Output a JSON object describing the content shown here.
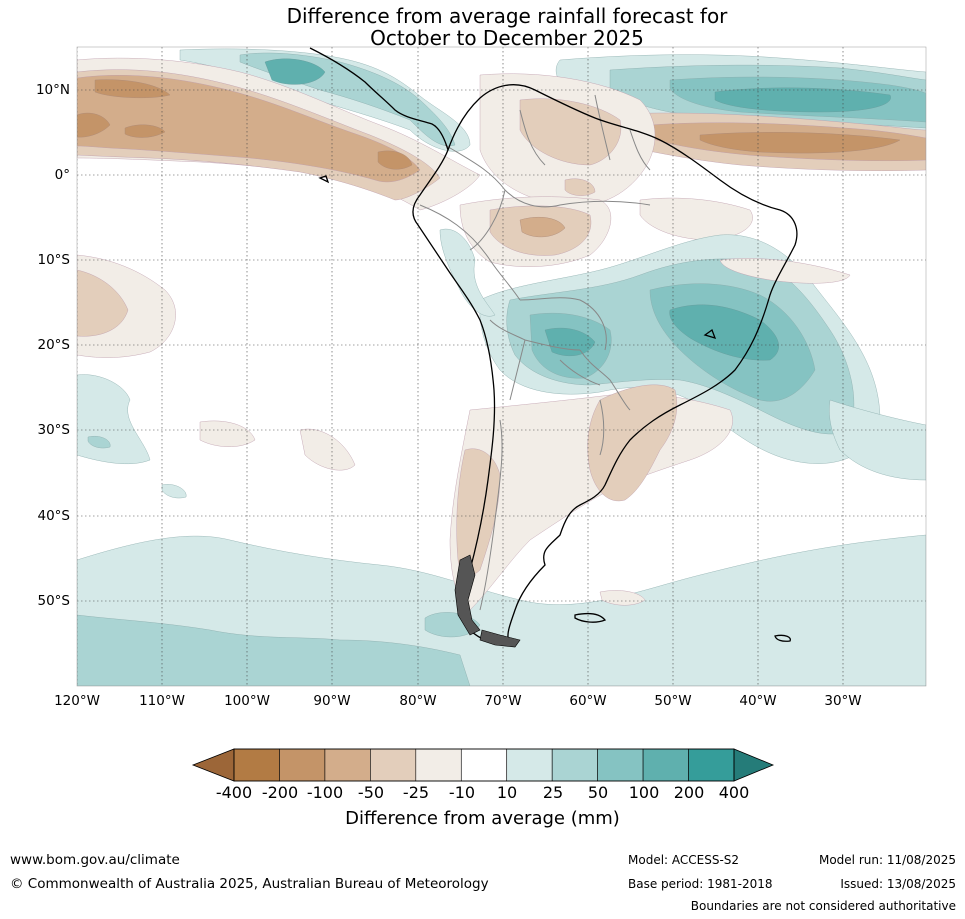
{
  "title": {
    "line1": "Difference from average rainfall forecast for",
    "line2": "October to December 2025"
  },
  "map": {
    "lat_labels": [
      "10°N",
      "0°",
      "10°S",
      "20°S",
      "30°S",
      "40°S",
      "50°S"
    ],
    "lon_labels": [
      "120°W",
      "110°W",
      "100°W",
      "90°W",
      "80°W",
      "70°W",
      "60°W",
      "50°W",
      "40°W",
      "30°W"
    ],
    "colors": {
      "dry_strong": "#b27b44",
      "dry_mid": "#c49468",
      "dry_light": "#d3ad8b",
      "dry_weak": "#e3cebb",
      "dry_faint": "#f2ede7",
      "neutral": "#ffffff",
      "wet_faint": "#d5e9e8",
      "wet_weak": "#aad4d3",
      "wet_light": "#85c3c2",
      "wet_mid": "#5fb0ae",
      "wet_strong": "#359d9a",
      "wet_extreme": "#257c79"
    }
  },
  "colorbar": {
    "tick_labels": [
      "-400",
      "-200",
      "-100",
      "-50",
      "-25",
      "-10",
      "10",
      "25",
      "50",
      "100",
      "200",
      "400"
    ],
    "segment_colors": [
      "#b27b44",
      "#c49468",
      "#d3ad8b",
      "#e3cebb",
      "#f2ede7",
      "#ffffff",
      "#d5e9e8",
      "#aad4d3",
      "#85c3c2",
      "#5fb0ae",
      "#359d9a"
    ],
    "low_extend_color": "#9c6638",
    "high_extend_color": "#257c79",
    "label": "Difference from average (mm)"
  },
  "footer": {
    "website": "www.bom.gov.au/climate",
    "copyright": "© Commonwealth of Australia 2025, Australian Bureau of Meteorology",
    "model": "Model: ACCESS-S2",
    "model_run": "Model run: 11/08/2025",
    "base_period": "Base period: 1981-2018",
    "issued": "Issued: 13/08/2025",
    "disclaimer": "Boundaries are not considered authoritative"
  }
}
